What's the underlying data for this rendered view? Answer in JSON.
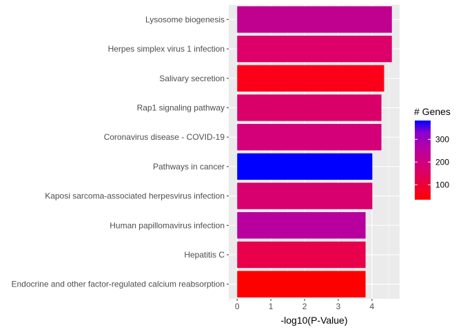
{
  "chart_data": {
    "type": "bar",
    "orientation": "horizontal",
    "title": "",
    "xlabel": "-log10(P-Value)",
    "ylabel": "",
    "xlim": [
      -0.25,
      4.82
    ],
    "xticks": [
      0,
      1,
      2,
      3,
      4
    ],
    "grid": true,
    "categories": [
      "Lysosome biogenesis",
      "Herpes simplex virus 1 infection",
      "Salivary secretion",
      "Rap1 signaling pathway",
      "Coronavirus disease - COVID-19",
      "Pathways in cancer",
      "Kaposi sarcoma-associated herpesvirus infection",
      "Human papillomavirus infection",
      "Hepatitis C",
      "Endocrine and other factor-regulated calcium reabsorption"
    ],
    "values": [
      4.59,
      4.59,
      4.36,
      4.28,
      4.28,
      4.01,
      4.01,
      3.81,
      3.81,
      3.81
    ],
    "gene_counts": [
      270,
      190,
      45,
      190,
      215,
      383,
      195,
      280,
      140,
      34
    ],
    "fill_colors": [
      "#C0008F",
      "#DC0068",
      "#FC0019",
      "#D9006A",
      "#D4007A",
      "#0000FF",
      "#D7006E",
      "#B8009E",
      "#E8004B",
      "#FF0000"
    ],
    "legend": {
      "title": "# Genes",
      "position": "right",
      "range": [
        34,
        383
      ],
      "ticks": [
        100,
        200,
        300
      ],
      "low_color": "#FF0000",
      "high_color": "#0000FF"
    }
  }
}
